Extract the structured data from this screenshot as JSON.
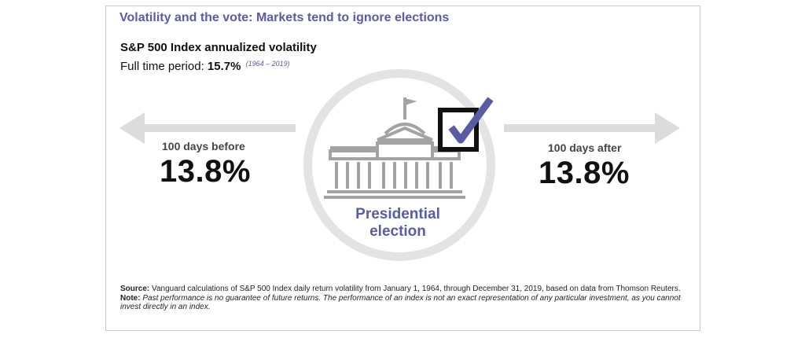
{
  "header": {
    "title": "Volatility and the vote: Markets tend to ignore elections",
    "subtitle": "S&P 500 Index annualized volatility",
    "period_label": "Full time period:",
    "period_value": "15.7%",
    "period_range": "(1964 – 2019)"
  },
  "before": {
    "label": "100 days before",
    "value": "13.8%"
  },
  "after": {
    "label": "100 days after",
    "value": "13.8%"
  },
  "center": {
    "line1": "Presidential",
    "line2": "election",
    "icons": [
      "capitol-building-icon",
      "checkbox-checked-icon"
    ]
  },
  "footnote": {
    "source_label": "Source:",
    "source_text": "Vanguard calculations of S&P 500 Index daily return volatility from January 1, 1964, through December 31, 2019, based on data from Thomson Reuters.",
    "note_label": "Note:",
    "note_text": "Past performance is no guarantee of future returns. The performance of an index is not an exact representation of any particular investment, as you cannot invest directly in an index."
  },
  "colors": {
    "accent": "#5a5ba5",
    "arrow": "#dcdcdc",
    "ring": "#e3e3e3",
    "building": "#a3a3a3",
    "text": "#111111"
  }
}
